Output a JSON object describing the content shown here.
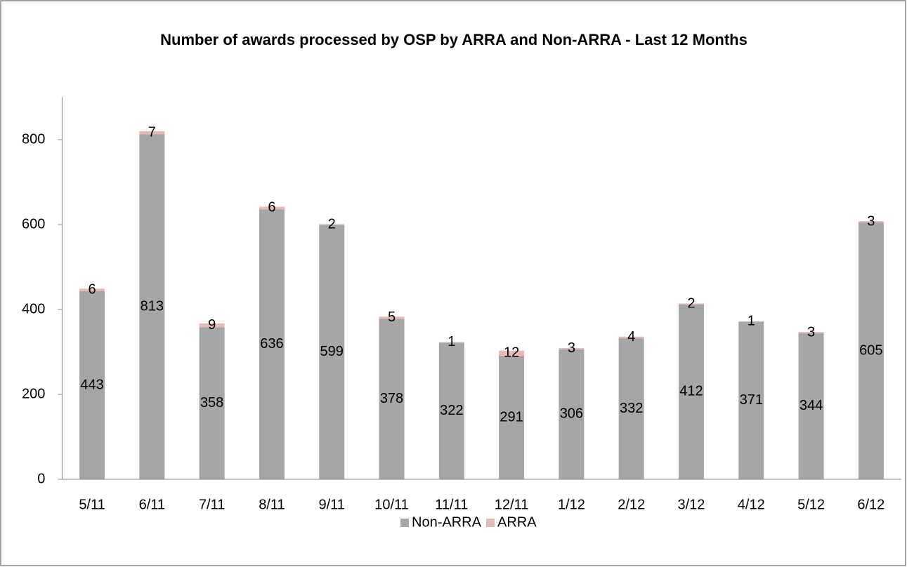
{
  "chart_data": {
    "type": "stacked_bar",
    "title": "Number of awards processed by OSP by ARRA and Non-ARRA - Last 12 Months",
    "categories": [
      "5/11",
      "6/11",
      "7/11",
      "8/11",
      "9/11",
      "10/11",
      "11/11",
      "12/11",
      "1/12",
      "2/12",
      "3/12",
      "4/12",
      "5/12",
      "6/12"
    ],
    "series": [
      {
        "name": "Non-ARRA",
        "color": "#a6a6a6",
        "values": [
          443,
          813,
          358,
          636,
          599,
          378,
          322,
          291,
          306,
          332,
          412,
          371,
          344,
          605
        ]
      },
      {
        "name": "ARRA",
        "color": "#e6b9b8",
        "values": [
          6,
          7,
          9,
          6,
          2,
          5,
          1,
          12,
          3,
          4,
          2,
          1,
          3,
          3
        ]
      }
    ],
    "ylim": [
      0,
      900
    ],
    "yticks": [
      0,
      200,
      400,
      600,
      800
    ],
    "legend": "bottom"
  }
}
